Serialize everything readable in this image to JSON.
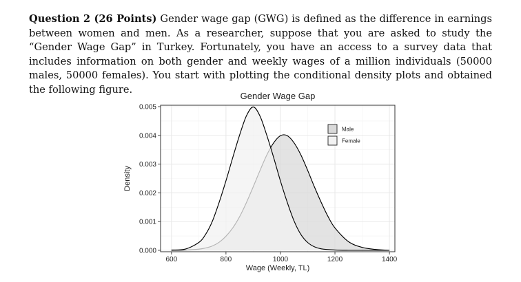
{
  "question": {
    "lead": "Question 2 (26 Points)",
    "body": " Gender wage gap (GWG) is defined as the difference in earnings between women and men. As a researcher, suppose that you are asked to study the “Gender Wage Gap” in Turkey. Fortunately, you have an access to a survey data that includes information on both gender and weekly wages of a million individuals (50000 males, 50000 females). You start with plotting the conditional density plots and obtained the following figure."
  },
  "chart_data": {
    "type": "area",
    "title": "Gender Wage Gap",
    "xlabel": "Wage (Weekly, TL)",
    "ylabel": "Density",
    "xlim": [
      560,
      1420
    ],
    "ylim": [
      -5e-05,
      0.00505
    ],
    "x_ticks": [
      600,
      800,
      1000,
      1200,
      1400
    ],
    "y_ticks": [
      0.0,
      0.001,
      0.002,
      0.003,
      0.004,
      0.005
    ],
    "y_tick_labels": [
      "0.000",
      "0.001",
      "0.002",
      "0.003",
      "0.004",
      "0.005"
    ],
    "grid": true,
    "legend_position": "top-right",
    "series": [
      {
        "name": "Male",
        "color": "#d9d9d9",
        "x": [
          600,
          650,
          700,
          725,
          750,
          775,
          800,
          825,
          850,
          875,
          900,
          925,
          950,
          975,
          1000,
          1025,
          1050,
          1075,
          1100,
          1125,
          1150,
          1175,
          1200,
          1250,
          1300,
          1350,
          1400
        ],
        "y": [
          0.0,
          1e-05,
          4e-05,
          8e-05,
          0.00015,
          0.00028,
          0.00049,
          0.00078,
          0.00117,
          0.00166,
          0.00221,
          0.00278,
          0.00332,
          0.00374,
          0.00399,
          0.00399,
          0.00374,
          0.00332,
          0.00278,
          0.0022,
          0.00166,
          0.00117,
          0.00078,
          0.0003,
          0.0001,
          3e-05,
          0.0
        ]
      },
      {
        "name": "Female",
        "color": "#f2f2f2",
        "x": [
          600,
          650,
          700,
          725,
          750,
          775,
          800,
          825,
          850,
          875,
          900,
          925,
          950,
          975,
          1000,
          1025,
          1050,
          1075,
          1100,
          1125,
          1150,
          1200,
          1250,
          1300,
          1400
        ],
        "y": [
          1e-05,
          4e-05,
          0.00027,
          0.00055,
          0.00101,
          0.00167,
          0.00242,
          0.00323,
          0.00401,
          0.00468,
          0.00499,
          0.00467,
          0.004,
          0.00323,
          0.00241,
          0.00167,
          0.00102,
          0.00055,
          0.00027,
          0.00012,
          5e-05,
          1e-05,
          0.0,
          0.0,
          0.0
        ]
      }
    ]
  }
}
